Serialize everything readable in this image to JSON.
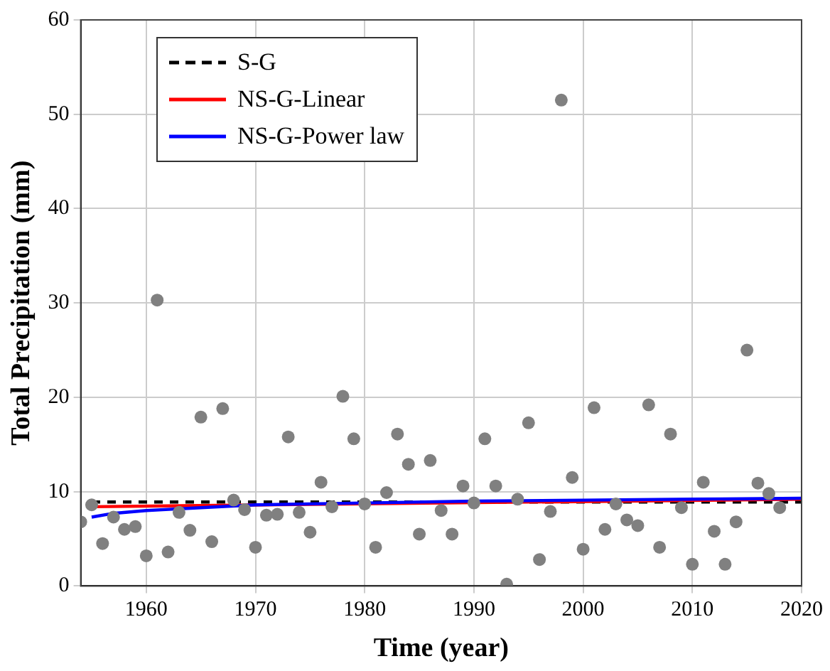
{
  "chart_data": {
    "type": "scatter",
    "xlabel": "Time (year)",
    "ylabel": "Total Precipitation (mm)",
    "xlim": [
      1954,
      2020
    ],
    "xticks": [
      1960,
      1970,
      1980,
      1990,
      2000,
      2010,
      2020
    ],
    "ylim": [
      0,
      60
    ],
    "yticks": [
      0,
      10,
      20,
      30,
      40,
      50,
      60
    ],
    "grid": true,
    "legend": "top left",
    "series": [
      {
        "type": "scatter",
        "color": "#808080",
        "marker": "circle",
        "x": [
          1954,
          1955,
          1956,
          1957,
          1958,
          1959,
          1960,
          1961,
          1962,
          1963,
          1964,
          1965,
          1966,
          1967,
          1968,
          1969,
          1970,
          1971,
          1972,
          1973,
          1974,
          1975,
          1976,
          1977,
          1978,
          1979,
          1980,
          1981,
          1982,
          1983,
          1984,
          1985,
          1986,
          1987,
          1988,
          1989,
          1990,
          1991,
          1992,
          1993,
          1994,
          1995,
          1996,
          1997,
          1998,
          1999,
          2000,
          2001,
          2002,
          2003,
          2004,
          2005,
          2006,
          2007,
          2008,
          2009,
          2010,
          2011,
          2012,
          2013,
          2014,
          2015,
          2016,
          2017,
          2018
        ],
        "values": [
          6.8,
          8.6,
          4.5,
          7.3,
          6.0,
          6.3,
          3.2,
          30.3,
          3.6,
          7.8,
          5.9,
          17.9,
          4.7,
          18.8,
          9.1,
          8.1,
          4.1,
          7.5,
          7.6,
          15.8,
          7.8,
          5.7,
          11.0,
          8.4,
          20.1,
          15.6,
          8.7,
          4.1,
          9.9,
          16.1,
          12.9,
          5.5,
          13.3,
          8.0,
          5.5,
          10.6,
          8.8,
          15.6,
          10.6,
          0.2,
          9.2,
          17.3,
          2.8,
          7.9,
          51.5,
          11.5,
          3.9,
          18.9,
          6.0,
          8.7,
          7.0,
          6.4,
          19.2,
          4.1,
          16.1,
          8.3,
          2.3,
          11.0,
          5.8,
          2.3,
          6.8,
          25.0,
          10.9,
          9.8,
          8.3
        ]
      },
      {
        "type": "line",
        "name": "S-G",
        "color": "#000000",
        "line_style": "dashed",
        "marker": "none",
        "x": [
          1955,
          2020
        ],
        "values": [
          8.9,
          8.9
        ]
      },
      {
        "type": "line",
        "name": "NS-G-Linear",
        "color": "#ff0000",
        "line_style": "solid",
        "marker": "none",
        "x": [
          1955,
          2020
        ],
        "values": [
          8.4,
          9.2
        ]
      },
      {
        "type": "line",
        "name": "NS-G-Power law",
        "color": "#0000ff",
        "line_style": "solid",
        "marker": "none",
        "x": [
          1955,
          1957,
          1960,
          1965,
          1970,
          1980,
          1990,
          2000,
          2010,
          2020
        ],
        "values": [
          7.3,
          7.7,
          8.0,
          8.3,
          8.6,
          8.8,
          9.0,
          9.1,
          9.2,
          9.3
        ]
      }
    ]
  }
}
